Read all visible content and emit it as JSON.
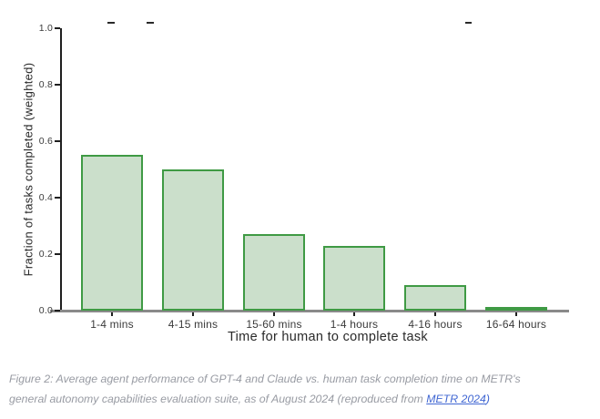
{
  "chart_data": {
    "type": "bar",
    "title": "",
    "categories": [
      "1-4 mins",
      "4-15 mins",
      "15-60 mins",
      "1-4 hours",
      "4-16 hours",
      "16-64 hours"
    ],
    "values": [
      0.55,
      0.5,
      0.27,
      0.23,
      0.09,
      0.003
    ],
    "xlabel": "Time for human to complete task",
    "ylabel": "Fraction of tasks completed (weighted)",
    "ylim": [
      0.0,
      1.0
    ],
    "yticks": [
      0.0,
      0.2,
      0.4,
      0.6,
      0.8,
      1.0
    ],
    "grid": false,
    "legend_position": "none",
    "colors": {
      "bar_fill": "#cbdfcb",
      "bar_border": "#3f9a44",
      "x_axis_line": "#8a8a8a",
      "y_axis_line": "#1f1f1f",
      "tick_text": "#3a3a3a",
      "axis_label_text": "#2a2a2a"
    }
  },
  "caption": {
    "line1": "Figure 2: Average agent performance of GPT-4 and Claude vs. human task completion time on METR's",
    "line2_before": "general autonomy capabilities evaluation suite, as of August 2024 (reproduced from ",
    "link_text": "METR 2024",
    "line2_after": ")",
    "text_color": "#989ba3",
    "link_color": "#4268d3"
  }
}
